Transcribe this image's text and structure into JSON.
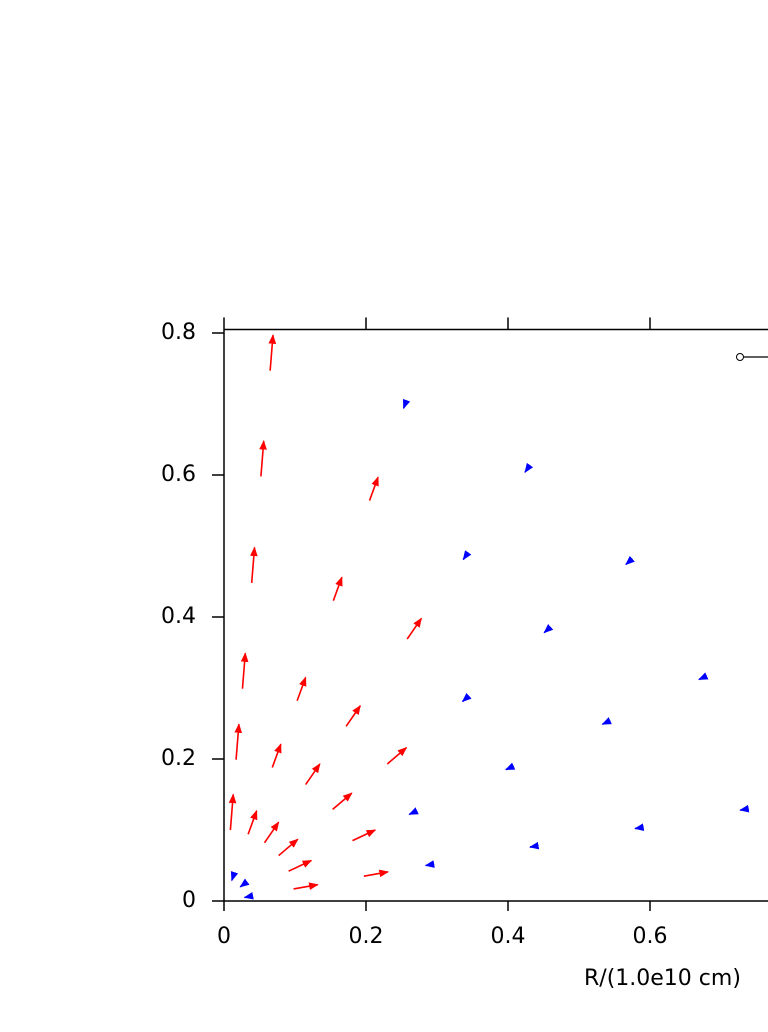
{
  "chart_data": {
    "type": "quiver",
    "x_label": "R/(1.0e10 cm)",
    "xlim": [
      0,
      0.8
    ],
    "xticks": [
      0,
      0.2,
      0.4,
      0.6
    ],
    "ylim": [
      0,
      0.805
    ],
    "yticks": [
      0,
      0.2,
      0.4,
      0.6,
      0.8
    ],
    "series": [
      {
        "color": "#ff0000",
        "x": [
          0.098,
          0.197,
          0.091,
          0.181,
          0.077,
          0.153,
          0.23,
          0.057,
          0.115,
          0.172,
          0.258,
          0.034,
          0.068,
          0.103,
          0.154,
          0.205,
          0.009,
          0.017,
          0.026,
          0.039,
          0.052,
          0.065
        ],
        "y": [
          0.017,
          0.035,
          0.042,
          0.085,
          0.064,
          0.129,
          0.193,
          0.082,
          0.164,
          0.246,
          0.369,
          0.094,
          0.188,
          0.282,
          0.423,
          0.564,
          0.1,
          0.199,
          0.299,
          0.448,
          0.598,
          0.747
        ],
        "u": [
          0.034,
          0.034,
          0.032,
          0.032,
          0.027,
          0.027,
          0.027,
          0.02,
          0.02,
          0.02,
          0.02,
          0.012,
          0.012,
          0.012,
          0.012,
          0.012,
          0.004,
          0.004,
          0.004,
          0.004,
          0.004,
          0.004
        ],
        "v": [
          0.006,
          0.006,
          0.015,
          0.015,
          0.023,
          0.023,
          0.023,
          0.029,
          0.029,
          0.029,
          0.029,
          0.033,
          0.033,
          0.033,
          0.033,
          0.033,
          0.05,
          0.05,
          0.05,
          0.05,
          0.05,
          0.05
        ]
      },
      {
        "color": "#0000ff",
        "x": [
          0.296,
          0.443,
          0.591,
          0.739,
          0.272,
          0.408,
          0.544,
          0.68,
          0.345,
          0.46,
          0.575,
          0.344,
          0.431,
          0.257,
          0.039,
          0.031,
          0.014
        ],
        "y": [
          0.052,
          0.078,
          0.104,
          0.13,
          0.127,
          0.19,
          0.254,
          0.317,
          0.289,
          0.386,
          0.482,
          0.491,
          0.614,
          0.705,
          0.007,
          0.026,
          0.038
        ],
        "u": [
          -0.012,
          -0.012,
          -0.012,
          -0.012,
          -0.011,
          -0.011,
          -0.011,
          -0.011,
          -0.009,
          -0.009,
          -0.009,
          -0.007,
          -0.007,
          -0.004,
          -0.01,
          -0.008,
          -0.003
        ],
        "v": [
          -0.002,
          -0.002,
          -0.002,
          -0.002,
          -0.005,
          -0.005,
          -0.005,
          -0.005,
          -0.008,
          -0.008,
          -0.008,
          -0.01,
          -0.01,
          -0.011,
          -0.002,
          -0.006,
          -0.009
        ]
      }
    ]
  }
}
